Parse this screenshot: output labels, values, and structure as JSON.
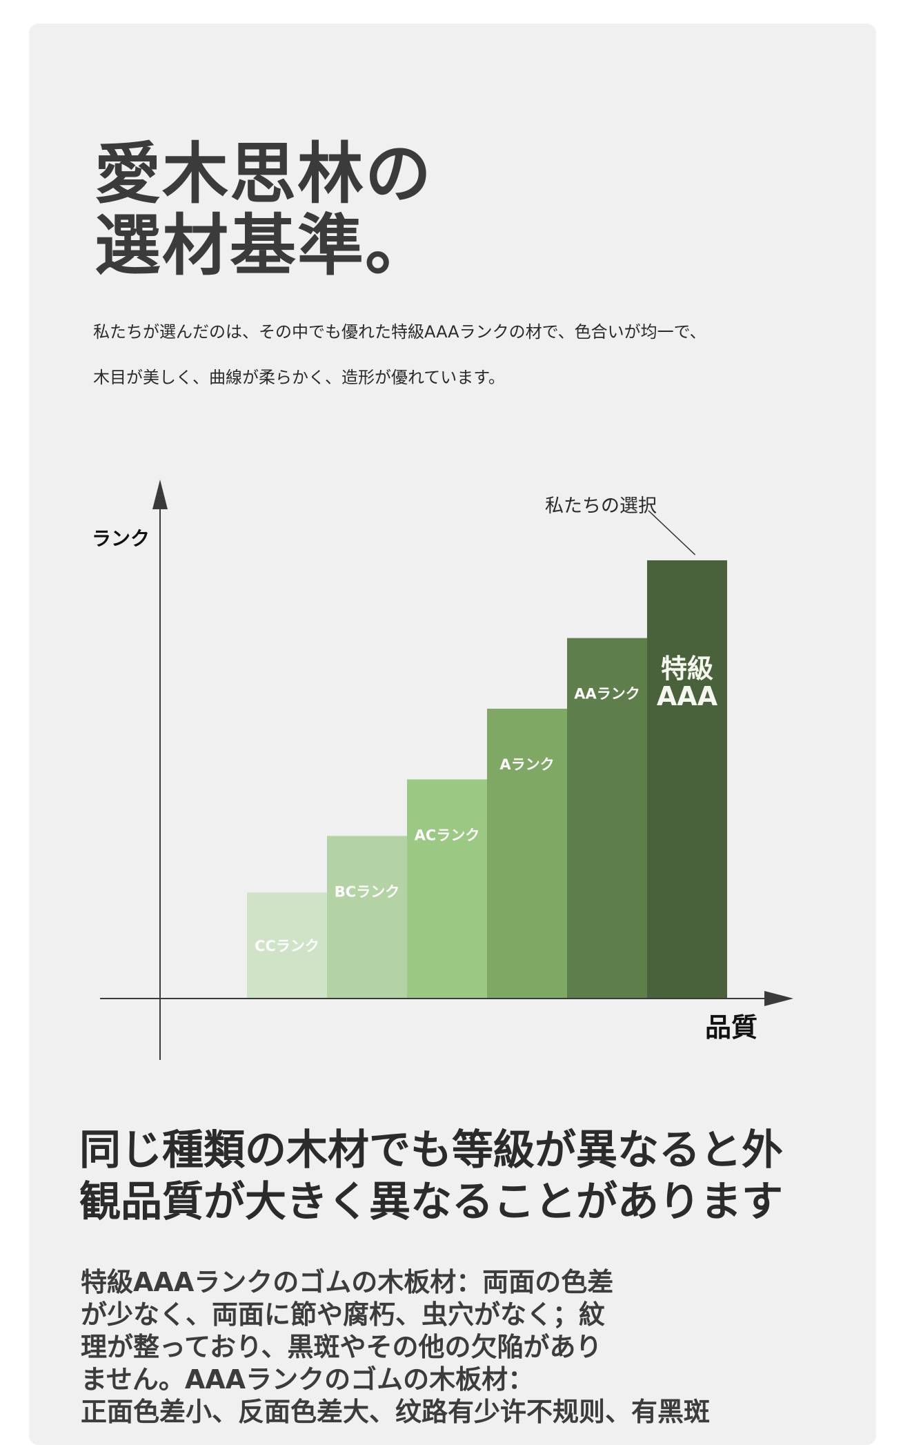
{
  "title": {
    "line1": "愛木思林の",
    "line2": "選材基準。"
  },
  "intro": {
    "line1": "私たちが選んだのは、その中でも優れた特級AAAランクの材で、色合いが均一で、",
    "line2": "木目が美しく、曲線が柔らかく、造形が優れています。"
  },
  "chart_data": {
    "type": "bar",
    "categories": [
      "CCランク",
      "BCランク",
      "ACランク",
      "Aランク",
      "AAランク",
      "特級AAA"
    ],
    "values": [
      1.5,
      2.3,
      3.1,
      4.1,
      5.1,
      6.2
    ],
    "colors": [
      "#cfe3c6",
      "#b4d3a5",
      "#9bc883",
      "#7fa864",
      "#5e7f4b",
      "#4a623c"
    ],
    "bar_label_color": "#ffffff",
    "xlabel": "品質",
    "ylabel": "ランク",
    "ylim": [
      0,
      7
    ],
    "grid": false,
    "annotation": {
      "text": "私たちの選択",
      "target": "特級AAA"
    }
  },
  "section2": {
    "heading_line1": "同じ種類の木材でも等級が異なると外",
    "heading_line2": "観品質が大きく異なることがあります",
    "body_lines": [
      "特級AAAランクのゴムの木板材：両面の色差",
      "が少なく、両面に節や腐朽、虫穴がなく；紋",
      "理が整っており、黒斑やその他の欠陥があり",
      "ません。AAAランクのゴムの木板材：",
      "正面色差小、反面色差大、纹路有少许不规则、有黑斑"
    ]
  }
}
